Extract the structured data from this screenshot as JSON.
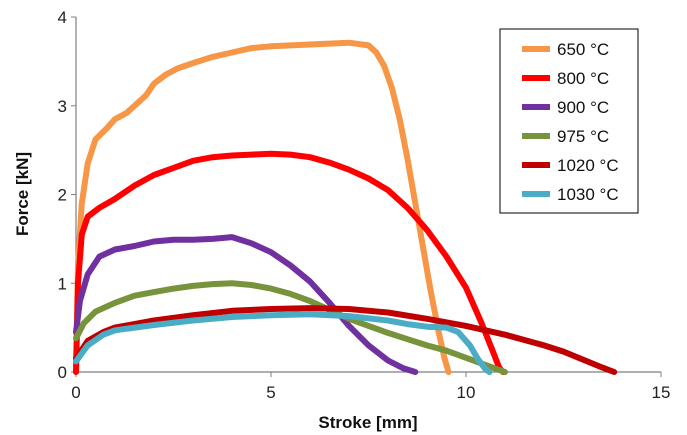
{
  "chart_data": {
    "type": "line",
    "title": "",
    "xlabel": "Stroke [mm]",
    "ylabel": "Force [kN]",
    "xlim": [
      0,
      15
    ],
    "ylim": [
      0,
      4
    ],
    "x_ticks": [
      0,
      5,
      10,
      15
    ],
    "y_ticks": [
      0,
      1,
      2,
      3,
      4
    ],
    "grid": false,
    "legend_position": "top-right",
    "series": [
      {
        "name": "650 °C",
        "color": "#F79646",
        "points": [
          [
            0,
            0.0
          ],
          [
            0.05,
            1.2
          ],
          [
            0.15,
            1.9
          ],
          [
            0.3,
            2.35
          ],
          [
            0.5,
            2.62
          ],
          [
            0.8,
            2.75
          ],
          [
            1.0,
            2.85
          ],
          [
            1.3,
            2.92
          ],
          [
            1.5,
            3.0
          ],
          [
            1.8,
            3.12
          ],
          [
            2.0,
            3.25
          ],
          [
            2.3,
            3.35
          ],
          [
            2.6,
            3.42
          ],
          [
            3.0,
            3.48
          ],
          [
            3.5,
            3.55
          ],
          [
            4.0,
            3.6
          ],
          [
            4.5,
            3.65
          ],
          [
            5.0,
            3.67
          ],
          [
            5.5,
            3.68
          ],
          [
            6.0,
            3.69
          ],
          [
            6.5,
            3.7
          ],
          [
            7.0,
            3.71
          ],
          [
            7.5,
            3.68
          ],
          [
            7.7,
            3.6
          ],
          [
            7.9,
            3.45
          ],
          [
            8.1,
            3.2
          ],
          [
            8.3,
            2.85
          ],
          [
            8.5,
            2.4
          ],
          [
            8.7,
            1.9
          ],
          [
            8.9,
            1.4
          ],
          [
            9.1,
            0.9
          ],
          [
            9.3,
            0.45
          ],
          [
            9.45,
            0.15
          ],
          [
            9.55,
            0.0
          ]
        ]
      },
      {
        "name": "800 °C",
        "color": "#FF0000",
        "points": [
          [
            0,
            0.0
          ],
          [
            0.05,
            1.0
          ],
          [
            0.15,
            1.55
          ],
          [
            0.3,
            1.75
          ],
          [
            0.6,
            1.85
          ],
          [
            1.0,
            1.95
          ],
          [
            1.5,
            2.1
          ],
          [
            2.0,
            2.22
          ],
          [
            2.5,
            2.3
          ],
          [
            3.0,
            2.38
          ],
          [
            3.5,
            2.42
          ],
          [
            4.0,
            2.44
          ],
          [
            4.5,
            2.45
          ],
          [
            5.0,
            2.46
          ],
          [
            5.5,
            2.45
          ],
          [
            6.0,
            2.42
          ],
          [
            6.5,
            2.36
          ],
          [
            7.0,
            2.28
          ],
          [
            7.5,
            2.18
          ],
          [
            8.0,
            2.05
          ],
          [
            8.5,
            1.85
          ],
          [
            9.0,
            1.6
          ],
          [
            9.5,
            1.3
          ],
          [
            10.0,
            0.95
          ],
          [
            10.4,
            0.55
          ],
          [
            10.7,
            0.22
          ],
          [
            10.85,
            0.05
          ],
          [
            10.95,
            0.0
          ]
        ]
      },
      {
        "name": "900 °C",
        "color": "#7030A0",
        "points": [
          [
            0,
            0.45
          ],
          [
            0.1,
            0.8
          ],
          [
            0.3,
            1.1
          ],
          [
            0.6,
            1.3
          ],
          [
            1.0,
            1.38
          ],
          [
            1.5,
            1.42
          ],
          [
            2.0,
            1.47
          ],
          [
            2.5,
            1.49
          ],
          [
            3.0,
            1.49
          ],
          [
            3.5,
            1.5
          ],
          [
            4.0,
            1.52
          ],
          [
            4.5,
            1.45
          ],
          [
            5.0,
            1.35
          ],
          [
            5.5,
            1.2
          ],
          [
            6.0,
            1.02
          ],
          [
            6.5,
            0.78
          ],
          [
            7.0,
            0.52
          ],
          [
            7.5,
            0.3
          ],
          [
            8.0,
            0.13
          ],
          [
            8.4,
            0.04
          ],
          [
            8.7,
            0.0
          ]
        ]
      },
      {
        "name": "975 °C",
        "color": "#77933C",
        "points": [
          [
            0,
            0.38
          ],
          [
            0.2,
            0.55
          ],
          [
            0.5,
            0.68
          ],
          [
            1.0,
            0.78
          ],
          [
            1.5,
            0.86
          ],
          [
            2.0,
            0.9
          ],
          [
            2.5,
            0.94
          ],
          [
            3.0,
            0.97
          ],
          [
            3.5,
            0.99
          ],
          [
            4.0,
            1.0
          ],
          [
            4.5,
            0.98
          ],
          [
            5.0,
            0.94
          ],
          [
            5.5,
            0.88
          ],
          [
            6.0,
            0.8
          ],
          [
            6.5,
            0.7
          ],
          [
            7.0,
            0.6
          ],
          [
            7.5,
            0.52
          ],
          [
            8.0,
            0.44
          ],
          [
            8.5,
            0.37
          ],
          [
            9.0,
            0.3
          ],
          [
            9.5,
            0.24
          ],
          [
            10.0,
            0.16
          ],
          [
            10.5,
            0.08
          ],
          [
            10.8,
            0.03
          ],
          [
            11.0,
            0.0
          ]
        ]
      },
      {
        "name": "1020 °C",
        "color": "#C00000",
        "points": [
          [
            0,
            0.15
          ],
          [
            0.3,
            0.35
          ],
          [
            0.7,
            0.45
          ],
          [
            1.0,
            0.5
          ],
          [
            2.0,
            0.58
          ],
          [
            3.0,
            0.64
          ],
          [
            4.0,
            0.69
          ],
          [
            5.0,
            0.71
          ],
          [
            6.0,
            0.72
          ],
          [
            7.0,
            0.71
          ],
          [
            8.0,
            0.67
          ],
          [
            9.0,
            0.6
          ],
          [
            10.0,
            0.52
          ],
          [
            11.0,
            0.42
          ],
          [
            12.0,
            0.3
          ],
          [
            12.5,
            0.23
          ],
          [
            13.0,
            0.14
          ],
          [
            13.5,
            0.05
          ],
          [
            13.8,
            0.0
          ]
        ]
      },
      {
        "name": "1030 °C",
        "color": "#4BACC6",
        "points": [
          [
            0,
            0.12
          ],
          [
            0.3,
            0.3
          ],
          [
            0.7,
            0.42
          ],
          [
            1.0,
            0.47
          ],
          [
            2.0,
            0.53
          ],
          [
            3.0,
            0.58
          ],
          [
            4.0,
            0.62
          ],
          [
            5.0,
            0.64
          ],
          [
            6.0,
            0.65
          ],
          [
            7.0,
            0.63
          ],
          [
            8.0,
            0.58
          ],
          [
            8.5,
            0.54
          ],
          [
            9.0,
            0.51
          ],
          [
            9.5,
            0.5
          ],
          [
            9.8,
            0.45
          ],
          [
            10.1,
            0.3
          ],
          [
            10.3,
            0.15
          ],
          [
            10.5,
            0.03
          ],
          [
            10.6,
            0.0
          ]
        ]
      }
    ]
  }
}
